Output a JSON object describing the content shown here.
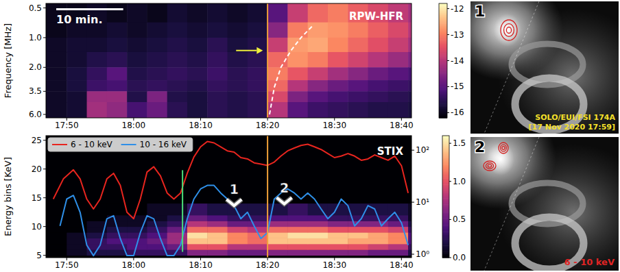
{
  "chart_data": [
    {
      "type": "heatmap",
      "title": "RPW-HFR",
      "ylabel": "Frequency [MHz]",
      "log": "y",
      "xlim": [
        46.9,
        101.5
      ],
      "ylim": [
        6.5,
        0.45
      ],
      "xticks": [
        {
          "value": 50,
          "label": "17:50"
        },
        {
          "value": 60,
          "label": "18:00"
        },
        {
          "value": 70,
          "label": "18:10"
        },
        {
          "value": 80,
          "label": "18:20"
        },
        {
          "value": 90,
          "label": "18:30"
        },
        {
          "value": 100,
          "label": "18:40"
        }
      ],
      "yticks": [
        0.5,
        {
          "value": 1.0,
          "label": "1.0"
        },
        {
          "value": 2.0,
          "label": "2.0"
        },
        3.5,
        {
          "value": 6.0,
          "label": "6.0"
        }
      ],
      "x_edges": [
        46,
        50,
        53,
        56,
        59,
        62,
        65,
        68,
        71,
        74,
        77,
        80,
        83,
        86,
        89,
        92,
        95,
        98,
        101,
        104
      ],
      "y_edges": [
        0.45,
        0.7,
        1.0,
        1.4,
        2.0,
        2.7,
        3.5,
        4.5,
        6.5
      ],
      "cells": [
        [
          -16,
          -16,
          -15.9,
          -16,
          -15.9,
          -16,
          -15.8,
          -15.9,
          -15.8,
          -15.9,
          -15.8,
          -15.0,
          -13.8,
          -13.2,
          -13.0,
          -13.3,
          -13.6,
          -13.9,
          -14.2
        ],
        [
          -16,
          -15.9,
          -15.9,
          -15.8,
          -15.9,
          -15.8,
          -15.7,
          -15.8,
          -15.7,
          -15.8,
          -15.7,
          -14.5,
          -13.0,
          -12.7,
          -12.8,
          -13.0,
          -13.3,
          -13.6,
          -14.0
        ],
        [
          -15.9,
          -15.8,
          -15.8,
          -15.7,
          -15.8,
          -15.7,
          -15.6,
          -15.7,
          -15.5,
          -15.7,
          -15.6,
          -13.8,
          -12.7,
          -12.6,
          -12.9,
          -13.2,
          -13.5,
          -13.8,
          -14.2
        ],
        [
          -15.9,
          -15.8,
          -15.6,
          -15.5,
          -15.7,
          -15.6,
          -15.5,
          -15.6,
          -15.4,
          -15.6,
          -15.5,
          -13.2,
          -12.8,
          -13.0,
          -13.4,
          -13.7,
          -14.0,
          -14.3,
          -14.6
        ],
        [
          -15.9,
          -15.7,
          -15.4,
          -15.0,
          -15.6,
          -15.5,
          -15.4,
          -15.5,
          -15.3,
          -15.5,
          -15.4,
          -13.0,
          -13.4,
          -13.8,
          -14.2,
          -14.5,
          -14.8,
          -15.0,
          -15.2
        ],
        [
          -15.9,
          -15.7,
          -15.3,
          -15.2,
          -15.5,
          -15.4,
          -15.5,
          -15.6,
          -15.4,
          -15.5,
          -15.4,
          -13.2,
          -14.0,
          -14.5,
          -14.8,
          -15.0,
          -15.2,
          -15.3,
          -15.4
        ],
        [
          -15.9,
          -15.8,
          -14.3,
          -14.3,
          -15.6,
          -14.6,
          -15.6,
          -15.7,
          -15.5,
          -15.6,
          -15.5,
          -13.6,
          -14.6,
          -15.0,
          -15.2,
          -15.3,
          -15.4,
          -15.5,
          -15.6
        ],
        [
          -15.9,
          -15.8,
          -14.2,
          -14.4,
          -15.2,
          -14.8,
          -15.5,
          -15.7,
          -15.5,
          -15.6,
          -15.5,
          -14.0,
          -15.0,
          -15.3,
          -15.4,
          -15.5,
          -15.6,
          -15.6,
          -15.7
        ]
      ],
      "colorbar": {
        "range": [
          -16.2,
          -11.8
        ],
        "ticks": [
          -12,
          -13,
          -14,
          -15,
          -16
        ]
      },
      "scale_bar": {
        "label": "10 min.",
        "length": 10
      },
      "vlines": [
        {
          "x": 80,
          "color": "#f2a23a"
        }
      ],
      "arrow": {
        "x": [
          75.3,
          79.3
        ],
        "y": [
          1.35,
          1.35
        ],
        "color": "#f0f03c"
      },
      "drift_curve": {
        "x": [
          80.3,
          81.0,
          82.0,
          83.5,
          85.0,
          86.8
        ],
        "y": [
          6.0,
          3.2,
          2.0,
          1.35,
          1.0,
          0.75
        ]
      }
    },
    {
      "type": "heatmap",
      "title": "STIX",
      "ylabel": "Energy bins [KeV]",
      "xlim": [
        46.9,
        101.5
      ],
      "ylim": [
        4.6,
        25.8
      ],
      "xticks": [
        {
          "value": 50,
          "label": "17:50"
        },
        {
          "value": 60,
          "label": "18:00"
        },
        {
          "value": 70,
          "label": "18:10"
        },
        {
          "value": 80,
          "label": "18:20"
        },
        {
          "value": 90,
          "label": "18:30"
        },
        {
          "value": 100,
          "label": "18:40"
        }
      ],
      "yticks": [
        5,
        10,
        15,
        20,
        25
      ],
      "x_edges": [
        46,
        50,
        53,
        56,
        59,
        62,
        65,
        68,
        71,
        74,
        77,
        80,
        83,
        86,
        89,
        92,
        95,
        98,
        101,
        104
      ],
      "y_edges": [
        5,
        6,
        7,
        8,
        9,
        10,
        11,
        12,
        14
      ],
      "cells": [
        [
          0,
          0.1,
          0.2,
          0.2,
          0.3,
          0.3,
          0.3,
          0.6,
          0.6,
          0.5,
          0.5,
          0.6,
          0.6,
          0.6,
          0.6,
          0.6,
          0.5,
          0.5,
          0.2
        ],
        [
          0,
          0.1,
          0.3,
          0.3,
          0.4,
          0.4,
          0.5,
          1.0,
          1.0,
          0.8,
          0.8,
          1.0,
          1.0,
          1.0,
          1.0,
          1.0,
          0.9,
          0.8,
          0.3
        ],
        [
          0,
          0.1,
          0.3,
          0.4,
          0.4,
          0.5,
          0.7,
          1.4,
          1.4,
          1.2,
          1.1,
          1.4,
          1.4,
          1.4,
          1.4,
          1.3,
          1.3,
          1.2,
          0.4
        ],
        [
          0,
          0.1,
          0.2,
          0.3,
          0.3,
          0.4,
          0.7,
          1.5,
          1.4,
          1.2,
          1.1,
          1.4,
          1.5,
          1.5,
          1.4,
          1.4,
          1.3,
          1.2,
          0.4
        ],
        [
          0,
          0,
          0.1,
          0.2,
          0.2,
          0.3,
          0.5,
          1.1,
          1.1,
          0.9,
          0.8,
          1.1,
          1.1,
          1.1,
          1.0,
          1.0,
          1.0,
          0.9,
          0.3
        ],
        [
          0,
          0,
          0.1,
          0.1,
          0.1,
          0.2,
          0.3,
          0.8,
          0.7,
          0.5,
          0.5,
          0.7,
          0.7,
          0.7,
          0.6,
          0.6,
          0.6,
          0.5,
          0.2
        ],
        [
          0,
          0,
          0,
          0.1,
          0.1,
          0.1,
          0.2,
          0.5,
          0.4,
          0.3,
          0.3,
          0.4,
          0.4,
          0.4,
          0.3,
          0.3,
          0.3,
          0.3,
          0.1
        ],
        [
          0,
          0,
          0,
          0,
          0,
          0.1,
          0.1,
          0.3,
          0.2,
          0.2,
          0.2,
          0.2,
          0.3,
          0.2,
          0.2,
          0.2,
          0.2,
          0.2,
          0.1
        ]
      ],
      "colorbar": {
        "range": [
          0,
          1.6
        ],
        "ticks": [
          {
            "value": 0,
            "label": "0.0"
          },
          {
            "value": 0.5,
            "label": "0.5"
          },
          {
            "value": 1,
            "label": "1.0"
          },
          {
            "value": 1.5,
            "label": "1.5"
          }
        ]
      },
      "vlines": [
        {
          "x": 80,
          "color": "#f2a23a"
        },
        {
          "x": 67.3,
          "y": [
            5.6,
            19.8
          ],
          "color": "#4be07a"
        }
      ],
      "annotations": [
        {
          "text": "1",
          "x": 75,
          "y": 14
        },
        {
          "text": "2",
          "x": 82.5,
          "y": 14.3
        }
      ]
    },
    {
      "type": "line",
      "log": "y",
      "legend": "top-left",
      "tick_labels": "y",
      "xlim": [
        46.9,
        101.5
      ],
      "ylim": [
        0.86,
        190
      ],
      "yticks": [
        {
          "value": 1,
          "label": "10⁰"
        },
        {
          "value": 10,
          "label": "10¹"
        },
        {
          "value": 100,
          "label": "10²"
        }
      ],
      "series": [
        {
          "name": "6 - 10 keV",
          "color": "#e8251f",
          "x": [
            48,
            49.5,
            51,
            52,
            53,
            54,
            55,
            56,
            57,
            58,
            59,
            60,
            61,
            62,
            63,
            64,
            65,
            66,
            67,
            68,
            69,
            70,
            71,
            72,
            73,
            74,
            75,
            76,
            77,
            78,
            79,
            80,
            81,
            82,
            83,
            84,
            85,
            86,
            87,
            88,
            89,
            90,
            91,
            92,
            93,
            94,
            95,
            96,
            97,
            98,
            99,
            100,
            101
          ],
          "values": [
            11.5,
            28,
            42,
            28,
            11.5,
            7.4,
            11.5,
            28,
            36,
            21,
            6.4,
            4.8,
            11.5,
            38,
            48,
            32,
            15,
            11.5,
            15,
            36,
            74,
            116,
            147,
            138,
            116,
            97,
            92,
            72,
            68,
            57,
            54,
            51,
            59,
            77,
            97,
            110,
            123,
            130,
            116,
            103,
            86,
            72,
            77,
            86,
            77,
            64,
            68,
            81,
            72,
            64,
            77,
            50,
            15
          ]
        },
        {
          "name": "10 - 16 keV",
          "color": "#2f8fe8",
          "x": [
            49,
            50,
            51,
            52,
            53,
            54,
            55,
            56,
            57,
            58,
            59,
            60,
            61,
            62,
            63,
            64,
            65,
            66,
            67,
            68,
            69,
            70,
            71,
            72,
            73,
            74,
            75,
            76,
            77,
            78,
            79,
            80,
            81,
            82,
            83,
            84,
            85,
            86,
            87,
            88,
            89,
            90,
            91,
            92,
            93,
            94,
            95,
            96,
            97,
            98,
            99,
            100,
            101
          ],
          "values": [
            3.5,
            11.5,
            13.5,
            6.4,
            1.5,
            0.94,
            1.5,
            4.8,
            5.5,
            2,
            0.94,
            0.94,
            2.6,
            5.5,
            4.8,
            2,
            0.94,
            0.94,
            1.5,
            4.8,
            11.5,
            18,
            21,
            21,
            15,
            11.5,
            8.6,
            4.8,
            6.4,
            3.5,
            2,
            2.6,
            11.5,
            15,
            18,
            15,
            11.5,
            15,
            11.5,
            7.4,
            4.8,
            6.4,
            11.5,
            8.6,
            3.5,
            4.8,
            8.6,
            7.4,
            3.5,
            4.8,
            6.4,
            4.0,
            1.5
          ]
        }
      ]
    }
  ],
  "images": [
    {
      "label": "1",
      "caption": "SOLO/EUI/FSI 174A",
      "date": "[17 Nov 2020 17:59]"
    },
    {
      "label": "2",
      "caption": "6 - 10 keV"
    }
  ]
}
